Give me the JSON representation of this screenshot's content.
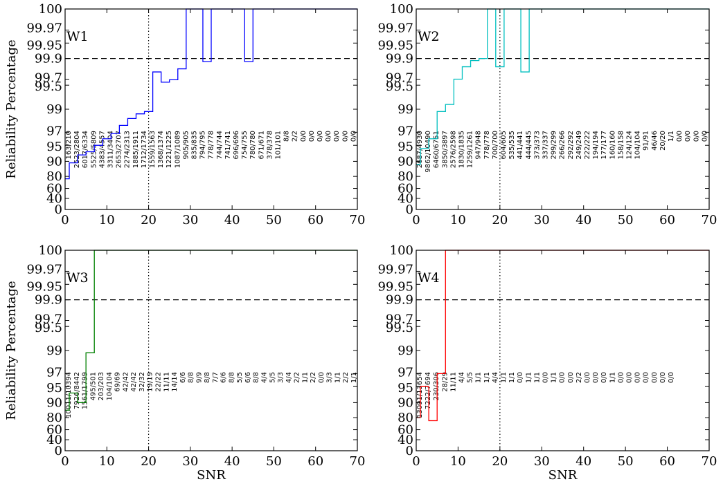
{
  "chart_data": [
    {
      "type": "line",
      "step": true,
      "panel_label": "W1",
      "color": "#0000ff",
      "xlabel": "",
      "ylabel": "Reliability Percentage",
      "xlim": [
        0,
        70
      ],
      "ylim": [
        0,
        100
      ],
      "y_scale": "nonlinear",
      "x_ticks": [
        "0",
        "10",
        "20",
        "30",
        "40",
        "50",
        "60",
        "70"
      ],
      "y_ticks": [
        "0",
        "40",
        "60",
        "80",
        "90",
        "95",
        "97",
        "99",
        "99.5",
        "99.7",
        "99.9",
        "99.95",
        "99.97",
        "100"
      ],
      "hline": 99.9,
      "vline": 20,
      "x": [
        0,
        1,
        3,
        5,
        7,
        9,
        11,
        13,
        15,
        17,
        19,
        21,
        23,
        25,
        27,
        29,
        31,
        33,
        35,
        37,
        39,
        41,
        43,
        45,
        70
      ],
      "y": [
        76,
        89,
        92,
        93,
        95,
        96,
        96.8,
        97.6,
        98.2,
        98.6,
        98.8,
        99.77,
        99.6,
        99.68,
        99.8,
        100,
        100,
        99.87,
        100,
        100,
        100,
        100,
        99.87,
        100,
        100
      ],
      "counts": [
        "163/210",
        "2523/2804",
        "6017/6334",
        "5525/5809",
        "4383/4557",
        "3311/3404",
        "2653/2707",
        "2274/2313",
        "1885/1911",
        "1712/1734",
        "1559/1563",
        "1368/1374",
        "1221/1225",
        "1087/1089",
        "905/905",
        "835/835",
        "794/795",
        "778/778",
        "744/744",
        "741/741",
        "696/696",
        "754/755",
        "780/780",
        "671/671",
        "378/378",
        "101/101",
        "8/8",
        "2/2",
        "0/0",
        "0/0",
        "0/0",
        "0/0",
        "0/0",
        "0/0",
        "0/0"
      ]
    },
    {
      "type": "line",
      "step": true,
      "panel_label": "W2",
      "color": "#00bfbf",
      "xlabel": "",
      "ylabel": "",
      "xlim": [
        0,
        70
      ],
      "ylim": [
        0,
        100
      ],
      "y_scale": "nonlinear",
      "x_ticks": [
        "0",
        "10",
        "20",
        "30",
        "40",
        "50",
        "60",
        "70"
      ],
      "y_ticks": [
        "0",
        "40",
        "60",
        "80",
        "90",
        "95",
        "97",
        "99",
        "99.5",
        "99.7",
        "99.9",
        "99.95",
        "99.97",
        "100"
      ],
      "hline": 99.9,
      "vline": 20,
      "x": [
        0,
        1,
        3,
        5,
        7,
        9,
        11,
        13,
        15,
        17,
        19,
        21,
        23,
        25,
        27,
        70
      ],
      "y": [
        88,
        94,
        96,
        98.8,
        99.1,
        99.7,
        99.82,
        99.88,
        99.9,
        100,
        99.82,
        100,
        100,
        99.77,
        100,
        100
      ],
      "counts": [
        "2687/4930",
        "9862/10490",
        "6460/6751",
        "3850/3897",
        "2576/2598",
        "1830/1835",
        "1259/1261",
        "947/948",
        "778/778",
        "700/700",
        "604/605",
        "535/535",
        "441/441",
        "444/445",
        "373/373",
        "337/337",
        "299/299",
        "266/266",
        "292/292",
        "249/249",
        "222/222",
        "194/194",
        "177/177",
        "160/160",
        "158/158",
        "124/124",
        "104/104",
        "91/91",
        "46/46",
        "20/20",
        "1/1",
        "0/0",
        "0/0",
        "0/0",
        "0/0"
      ]
    },
    {
      "type": "line",
      "step": true,
      "panel_label": "W3",
      "color": "#008000",
      "xlabel": "SNR",
      "ylabel": "Reliability Percentage",
      "xlim": [
        0,
        70
      ],
      "ylim": [
        0,
        100
      ],
      "y_scale": "nonlinear",
      "x_ticks": [
        "0",
        "10",
        "20",
        "30",
        "40",
        "50",
        "60",
        "70"
      ],
      "y_ticks": [
        "0",
        "40",
        "60",
        "80",
        "90",
        "95",
        "97",
        "99",
        "99.5",
        "99.7",
        "99.9",
        "99.95",
        "99.97",
        "100"
      ],
      "hline": 99.9,
      "vline": 20,
      "x": [
        0,
        1,
        3,
        5,
        7,
        70
      ],
      "y": [
        85,
        93,
        90,
        98.8,
        100,
        100
      ],
      "counts": [
        "10011/10394",
        "7926/8442",
        "1561/1799",
        "495/501",
        "203/203",
        "104/104",
        "69/69",
        "42/42",
        "42/42",
        "32/32",
        "19/19",
        "22/22",
        "11/11",
        "14/14",
        "6/6",
        "8/8",
        "9/9",
        "8/8",
        "7/7",
        "6/6",
        "8/8",
        "5/5",
        "6/6",
        "8/8",
        "4/4",
        "5/5",
        "3/3",
        "4/4",
        "2/2",
        "1/1",
        "2/2",
        "0/0",
        "3/3",
        "1/1",
        "2/2",
        "1/1"
      ]
    },
    {
      "type": "line",
      "step": true,
      "panel_label": "W4",
      "color": "#ff0000",
      "xlabel": "SNR",
      "ylabel": "",
      "xlim": [
        0,
        70
      ],
      "ylim": [
        0,
        100
      ],
      "y_scale": "nonlinear",
      "x_ticks": [
        "0",
        "10",
        "20",
        "30",
        "40",
        "50",
        "60",
        "70"
      ],
      "y_ticks": [
        "0",
        "40",
        "60",
        "80",
        "90",
        "95",
        "97",
        "99",
        "99.5",
        "99.7",
        "99.9",
        "99.95",
        "99.97",
        "100"
      ],
      "hline": 99.9,
      "vline": 20,
      "x": [
        0,
        1,
        3,
        5,
        7,
        70
      ],
      "y": [
        80,
        95,
        75,
        97,
        100,
        100
      ],
      "counts": [
        "13091/13654",
        "7222/7694",
        "230/306",
        "28/29",
        "11/11",
        "4/4",
        "5/5",
        "1/1",
        "1/1",
        "4/4",
        "1/1",
        "1/1",
        "0/0",
        "1/1",
        "1/1",
        "0/0",
        "1/1",
        "0/0",
        "0/0",
        "2/2",
        "0/0",
        "0/0",
        "0/0",
        "1/1",
        "0/0",
        "0/0",
        "0/0",
        "0/0",
        "0/0",
        "0/0",
        "0/0"
      ]
    }
  ]
}
